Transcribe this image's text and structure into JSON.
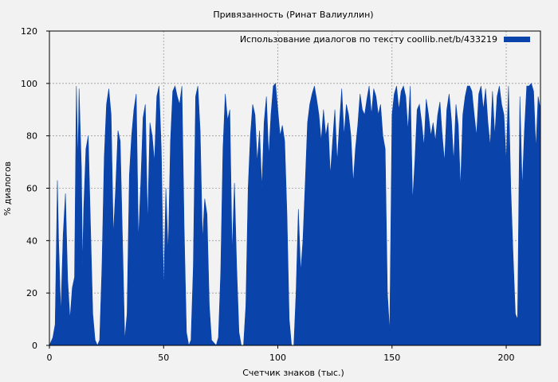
{
  "colors": {
    "background": "#f2f2f2",
    "series": "#0a43aa",
    "grid": "#9a9a9a",
    "axis": "#000000"
  },
  "chart_data": {
    "type": "area",
    "title": "Привязанность (Ринат Валиуллин)",
    "xlabel": "Счетчик знаков (тыс.)",
    "ylabel": "% диалогов",
    "xlim": [
      0,
      215
    ],
    "ylim": [
      0,
      120
    ],
    "x_ticks": [
      0,
      50,
      100,
      150,
      200
    ],
    "y_ticks": [
      0,
      20,
      40,
      60,
      80,
      100,
      120
    ],
    "grid": true,
    "legend_position": "top-right",
    "series": [
      {
        "name": "Использование диалогов по тексту  coollib.net/b/433219",
        "points": [
          [
            0,
            0
          ],
          [
            1.5,
            3
          ],
          [
            2.5,
            8
          ],
          [
            3,
            35
          ],
          [
            3.5,
            63
          ],
          [
            4,
            40
          ],
          [
            5,
            12
          ],
          [
            6,
            42
          ],
          [
            7,
            58
          ],
          [
            8,
            25
          ],
          [
            9,
            10
          ],
          [
            10,
            22
          ],
          [
            11,
            26
          ],
          [
            11.8,
            99
          ],
          [
            12.5,
            70
          ],
          [
            13,
            98
          ],
          [
            14,
            68
          ],
          [
            14.5,
            30
          ],
          [
            15,
            52
          ],
          [
            16,
            75
          ],
          [
            17,
            80
          ],
          [
            18,
            45
          ],
          [
            19,
            12
          ],
          [
            20,
            2
          ],
          [
            21,
            0
          ],
          [
            22,
            2
          ],
          [
            23,
            30
          ],
          [
            24,
            72
          ],
          [
            25,
            92
          ],
          [
            26,
            98
          ],
          [
            27,
            88
          ],
          [
            28,
            42
          ],
          [
            29,
            60
          ],
          [
            30,
            82
          ],
          [
            31,
            78
          ],
          [
            32,
            40
          ],
          [
            33,
            2
          ],
          [
            34,
            12
          ],
          [
            35,
            65
          ],
          [
            36,
            80
          ],
          [
            37,
            90
          ],
          [
            38,
            96
          ],
          [
            39,
            40
          ],
          [
            40,
            62
          ],
          [
            41,
            87
          ],
          [
            42,
            92
          ],
          [
            43,
            46
          ],
          [
            44,
            85
          ],
          [
            45,
            80
          ],
          [
            46,
            70
          ],
          [
            47,
            95
          ],
          [
            48,
            99
          ],
          [
            49,
            74
          ],
          [
            50,
            20
          ],
          [
            51,
            60
          ],
          [
            52,
            35
          ],
          [
            53,
            78
          ],
          [
            54,
            97
          ],
          [
            55,
            99
          ],
          [
            56,
            95
          ],
          [
            57,
            92
          ],
          [
            58,
            99
          ],
          [
            59,
            45
          ],
          [
            60,
            5
          ],
          [
            61,
            0
          ],
          [
            62,
            2
          ],
          [
            63,
            30
          ],
          [
            64,
            95
          ],
          [
            65,
            99
          ],
          [
            66,
            82
          ],
          [
            67,
            40
          ],
          [
            68,
            56
          ],
          [
            69,
            50
          ],
          [
            70,
            15
          ],
          [
            71,
            2
          ],
          [
            73,
            0
          ],
          [
            74,
            3
          ],
          [
            75,
            28
          ],
          [
            76,
            75
          ],
          [
            77,
            96
          ],
          [
            78,
            86
          ],
          [
            79,
            90
          ],
          [
            80,
            35
          ],
          [
            81,
            62
          ],
          [
            82,
            30
          ],
          [
            83,
            5
          ],
          [
            84,
            0
          ],
          [
            85,
            0
          ],
          [
            86,
            15
          ],
          [
            87,
            60
          ],
          [
            88,
            80
          ],
          [
            89,
            92
          ],
          [
            90,
            88
          ],
          [
            91,
            70
          ],
          [
            92,
            82
          ],
          [
            93,
            60
          ],
          [
            94,
            85
          ],
          [
            95,
            95
          ],
          [
            96,
            72
          ],
          [
            97,
            88
          ],
          [
            98,
            99
          ],
          [
            99,
            100
          ],
          [
            100,
            90
          ],
          [
            101,
            80
          ],
          [
            102,
            84
          ],
          [
            103,
            78
          ],
          [
            104,
            50
          ],
          [
            105,
            10
          ],
          [
            106,
            0
          ],
          [
            107,
            0
          ],
          [
            108,
            20
          ],
          [
            109,
            52
          ],
          [
            110,
            28
          ],
          [
            111,
            40
          ],
          [
            112,
            62
          ],
          [
            113,
            85
          ],
          [
            114,
            92
          ],
          [
            115,
            96
          ],
          [
            116,
            99
          ],
          [
            117,
            94
          ],
          [
            118,
            88
          ],
          [
            119,
            78
          ],
          [
            120,
            90
          ],
          [
            121,
            80
          ],
          [
            122,
            85
          ],
          [
            123,
            65
          ],
          [
            124,
            78
          ],
          [
            125,
            90
          ],
          [
            126,
            70
          ],
          [
            127,
            85
          ],
          [
            128,
            98
          ],
          [
            129,
            80
          ],
          [
            130,
            92
          ],
          [
            131,
            88
          ],
          [
            132,
            80
          ],
          [
            133,
            62
          ],
          [
            134,
            75
          ],
          [
            135,
            84
          ],
          [
            136,
            96
          ],
          [
            137,
            90
          ],
          [
            138,
            88
          ],
          [
            139,
            94
          ],
          [
            140,
            99
          ],
          [
            141,
            88
          ],
          [
            142,
            98
          ],
          [
            143,
            95
          ],
          [
            144,
            88
          ],
          [
            145,
            92
          ],
          [
            146,
            80
          ],
          [
            147,
            75
          ],
          [
            148,
            20
          ],
          [
            149,
            5
          ],
          [
            150,
            88
          ],
          [
            151,
            96
          ],
          [
            152,
            99
          ],
          [
            153,
            90
          ],
          [
            154,
            97
          ],
          [
            155,
            99
          ],
          [
            156,
            95
          ],
          [
            157,
            82
          ],
          [
            158,
            99
          ],
          [
            159,
            55
          ],
          [
            160,
            70
          ],
          [
            161,
            90
          ],
          [
            162,
            92
          ],
          [
            163,
            85
          ],
          [
            164,
            76
          ],
          [
            165,
            94
          ],
          [
            166,
            88
          ],
          [
            167,
            80
          ],
          [
            168,
            85
          ],
          [
            169,
            78
          ],
          [
            170,
            88
          ],
          [
            171,
            93
          ],
          [
            172,
            80
          ],
          [
            173,
            70
          ],
          [
            174,
            90
          ],
          [
            175,
            96
          ],
          [
            176,
            86
          ],
          [
            177,
            70
          ],
          [
            178,
            92
          ],
          [
            179,
            84
          ],
          [
            180,
            60
          ],
          [
            181,
            88
          ],
          [
            182,
            95
          ],
          [
            183,
            99
          ],
          [
            184,
            99
          ],
          [
            185,
            97
          ],
          [
            186,
            88
          ],
          [
            187,
            80
          ],
          [
            188,
            96
          ],
          [
            189,
            99
          ],
          [
            190,
            90
          ],
          [
            191,
            98
          ],
          [
            192,
            85
          ],
          [
            193,
            76
          ],
          [
            194,
            97
          ],
          [
            195,
            80
          ],
          [
            196,
            95
          ],
          [
            197,
            99
          ],
          [
            198,
            92
          ],
          [
            199,
            88
          ],
          [
            200,
            70
          ],
          [
            201,
            99
          ],
          [
            202,
            60
          ],
          [
            203,
            35
          ],
          [
            204,
            12
          ],
          [
            205,
            10
          ],
          [
            206,
            95
          ],
          [
            207,
            60
          ],
          [
            208,
            82
          ],
          [
            209,
            99
          ],
          [
            210,
            99
          ],
          [
            211,
            100
          ],
          [
            212,
            97
          ],
          [
            213,
            75
          ],
          [
            214,
            95
          ],
          [
            215,
            90
          ]
        ]
      }
    ]
  }
}
